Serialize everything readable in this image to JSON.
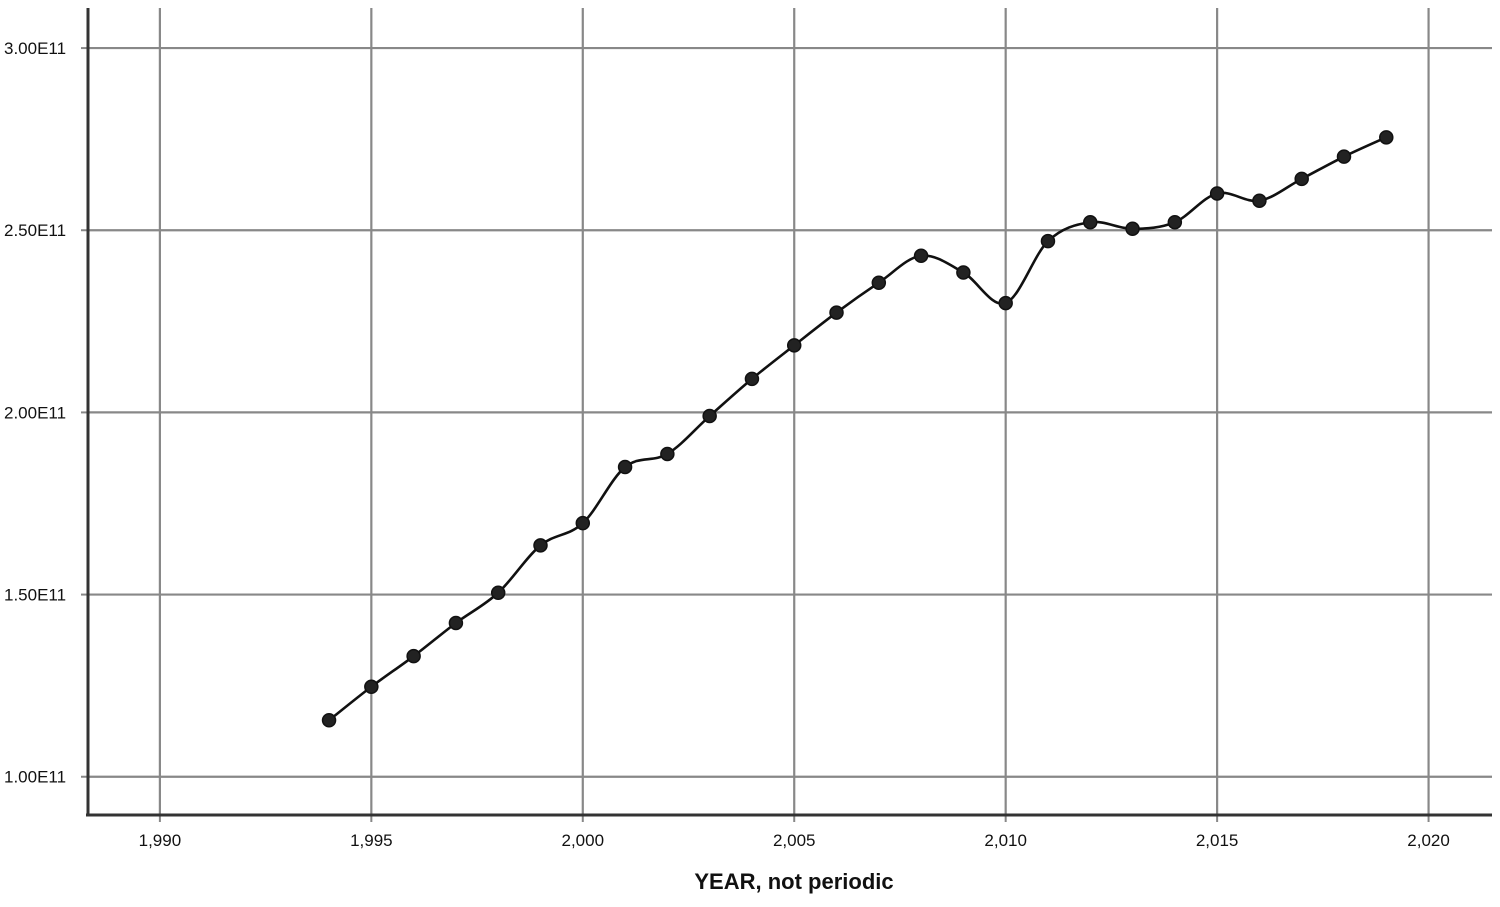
{
  "chart_data": {
    "type": "line",
    "title": "",
    "xlabel": "YEAR, not periodic",
    "ylabel": "",
    "xlim": [
      1988.3,
      2021.5
    ],
    "ylim": [
      89500000000,
      311000000000
    ],
    "x_ticks": [
      1990,
      1995,
      2000,
      2005,
      2010,
      2015,
      2020
    ],
    "x_tick_labels": [
      "1,990",
      "1,995",
      "2,000",
      "2,005",
      "2,010",
      "2,015",
      "2,020"
    ],
    "y_ticks": [
      100000000000,
      150000000000,
      200000000000,
      250000000000,
      300000000000
    ],
    "y_tick_labels": [
      "1.00E11",
      "1.50E11",
      "2.00E11",
      "2.50E11",
      "3.00E11"
    ],
    "grid": true,
    "interpolation": "smooth",
    "marker": "filled-circle",
    "line_color": "#111111",
    "grid_color": "#888888",
    "series": [
      {
        "x": [
          1994,
          1995,
          1996,
          1997,
          1998,
          1999,
          2000,
          2001,
          2002,
          2003,
          2004,
          2005,
          2006,
          2007,
          2008,
          2009,
          2010,
          2011,
          2012,
          2013,
          2014,
          2015,
          2016,
          2017,
          2018,
          2019
        ],
        "values": [
          115500000000,
          124700000000,
          133100000000,
          142200000000,
          150500000000,
          163500000000,
          169600000000,
          185000000000,
          188600000000,
          199000000000,
          209200000000,
          218400000000,
          227400000000,
          235600000000,
          243000000000,
          238400000000,
          230000000000,
          247000000000,
          252200000000,
          250400000000,
          252200000000,
          260100000000,
          258100000000,
          264100000000,
          270200000000,
          275500000000
        ]
      }
    ]
  }
}
